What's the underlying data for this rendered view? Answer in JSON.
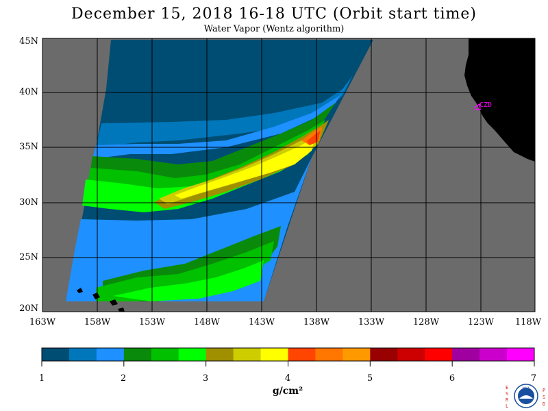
{
  "title": "December 15, 2018  16-18 UTC  (Orbit start time)",
  "subtitle": "Water Vapor (Wentz algorithm)",
  "map": {
    "lat_labels": [
      "45N",
      "40N",
      "35N",
      "30N",
      "25N",
      "20N"
    ],
    "lon_labels": [
      "163W",
      "158W",
      "153W",
      "148W",
      "143W",
      "138W",
      "133W",
      "128W",
      "123W",
      "118W"
    ],
    "station_label": "CZD",
    "colors": {
      "no_data": "#6b6b6b",
      "land": "#000000",
      "grid": "#000000",
      "station": "#ff00ff"
    }
  },
  "colorbar": {
    "ticks": [
      "1",
      "2",
      "3",
      "4",
      "5",
      "6",
      "7"
    ],
    "unit": "g/cm²",
    "colors": [
      "#004d73",
      "#0077bb",
      "#1e90ff",
      "#0a8a0a",
      "#00c000",
      "#00ff00",
      "#a09000",
      "#cdcd00",
      "#ffff00",
      "#ff4500",
      "#ff7700",
      "#ff9900",
      "#990000",
      "#cc0000",
      "#ff0000",
      "#a000a0",
      "#cc00cc",
      "#ff00ff"
    ]
  },
  "logo": {
    "left_letters": "ESRL",
    "right_letters": "PSD",
    "center_text": "NOAA"
  }
}
